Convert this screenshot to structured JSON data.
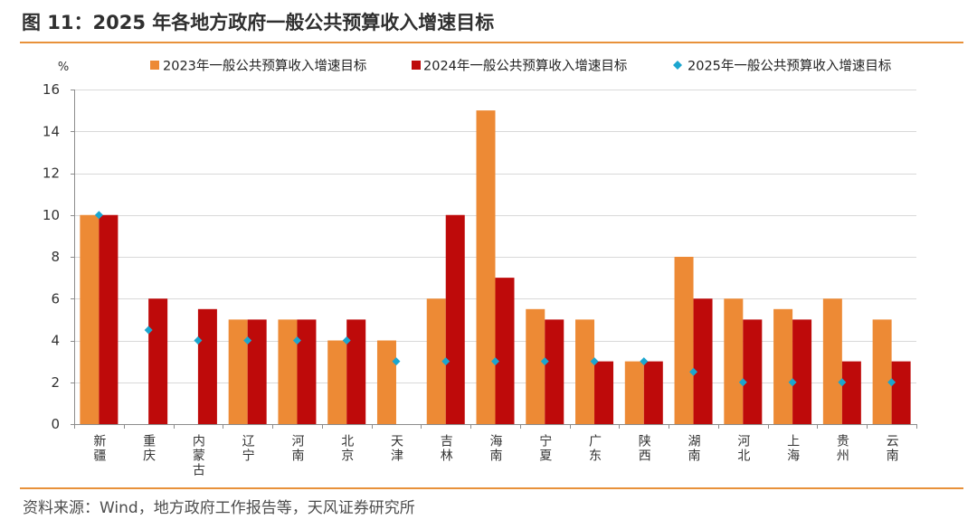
{
  "footer": {
    "source": "资料来源：Wind，地方政府工作报告等，天风证券研究所"
  },
  "colors": {
    "rule": "#E8913A",
    "grid": "#D9D9D9",
    "axis": "#8C8C8C"
  },
  "chart_data": {
    "type": "bar",
    "title": "图 11：2025 年各地方政府一般公共预算收入增速目标",
    "ylabel": "%",
    "ylim": [
      0,
      16
    ],
    "yticks": [
      0,
      2,
      4,
      6,
      8,
      10,
      12,
      14,
      16
    ],
    "grid": true,
    "legend_position": "top",
    "categories": [
      "新疆",
      "重庆",
      "内蒙古",
      "辽宁",
      "河南",
      "北京",
      "天津",
      "吉林",
      "海南",
      "宁夏",
      "广东",
      "陕西",
      "湖南",
      "河北",
      "上海",
      "贵州",
      "云南"
    ],
    "series": [
      {
        "name": "2023年一般公共预算收入增速目标",
        "mark": "bar",
        "color": "#ED8A35",
        "values": [
          10,
          null,
          null,
          5,
          5,
          4,
          4,
          6,
          15,
          5.5,
          5,
          3,
          8,
          6,
          5.5,
          6,
          5
        ]
      },
      {
        "name": "2024年一般公共预算收入增速目标",
        "mark": "bar",
        "color": "#BE0A0A",
        "values": [
          10,
          6,
          5.5,
          5,
          5,
          5,
          null,
          10,
          7,
          5,
          3,
          3,
          6,
          5,
          5,
          3,
          3
        ]
      },
      {
        "name": "2025年一般公共预算收入增速目标",
        "mark": "diamond",
        "color": "#1BA6CF",
        "values": [
          10,
          4.5,
          4,
          4,
          4,
          4,
          3,
          3,
          3,
          3,
          3,
          3,
          2.5,
          2,
          2,
          2,
          2
        ]
      }
    ]
  }
}
